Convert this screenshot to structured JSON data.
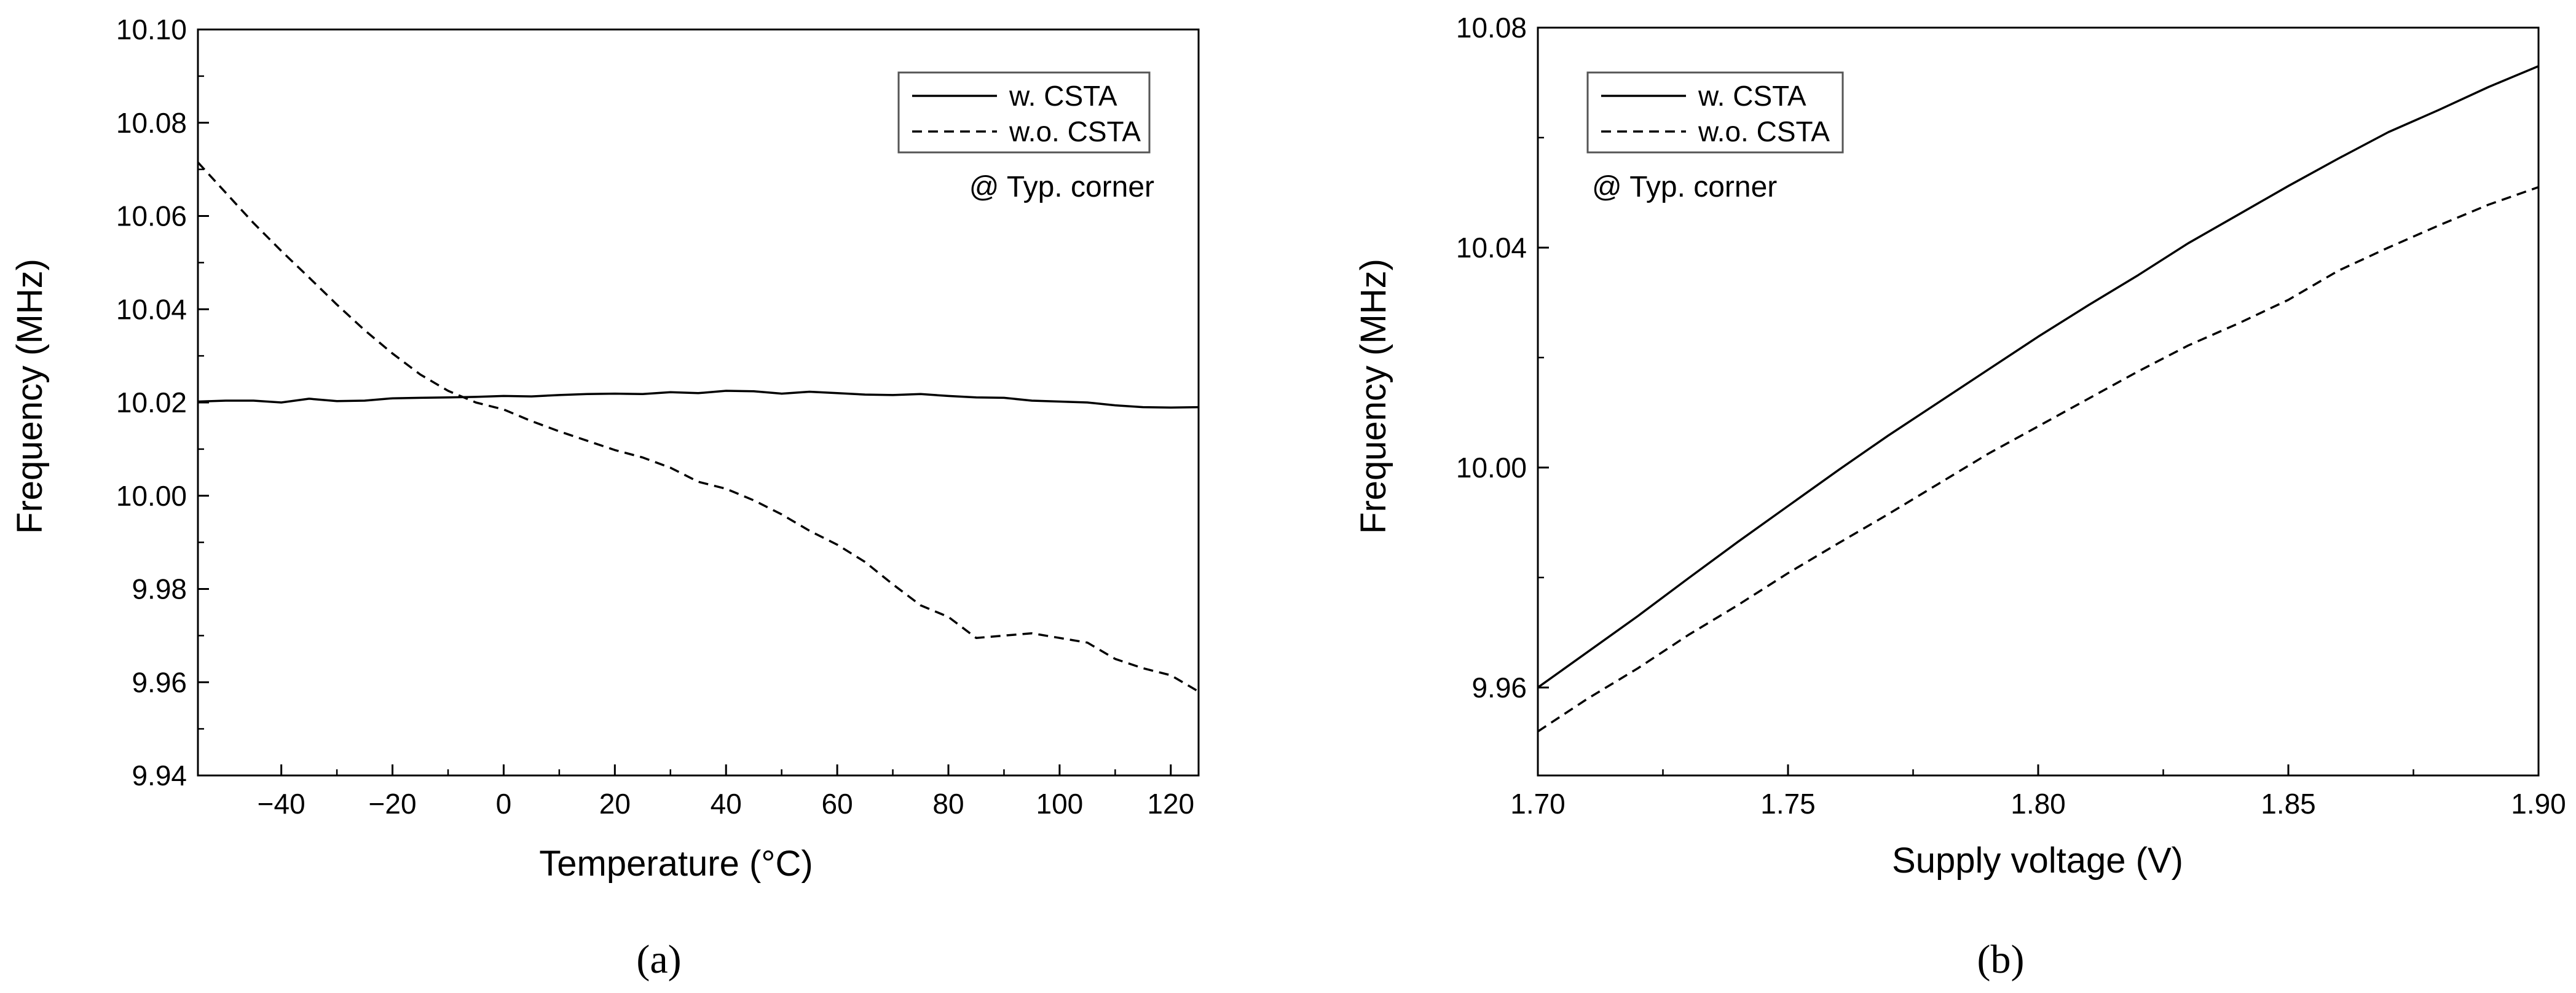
{
  "chart_data": [
    {
      "type": "line",
      "caption": "(a)",
      "xlabel": "Temperature (°C)",
      "ylabel": "Frequency (MHz)",
      "xlim": [
        -55,
        125
      ],
      "ylim": [
        9.94,
        10.1
      ],
      "xticks": [
        -40,
        -20,
        0,
        20,
        40,
        60,
        80,
        100,
        120
      ],
      "xtick_labels": [
        "−40",
        "−20",
        "0",
        "20",
        "40",
        "60",
        "80",
        "100",
        "120"
      ],
      "yticks": [
        9.94,
        9.96,
        9.98,
        10.0,
        10.02,
        10.04,
        10.06,
        10.08,
        10.1
      ],
      "ytick_labels": [
        "9.94",
        "9.96",
        "9.98",
        "10.00",
        "10.02",
        "10.04",
        "10.06",
        "10.08",
        "10.10"
      ],
      "annotation": "@ Typ. corner",
      "legend_position": "top-right",
      "grid": false,
      "series": [
        {
          "name": "w. CSTA",
          "style": "solid",
          "x": [
            -55,
            -50,
            -45,
            -40,
            -35,
            -30,
            -25,
            -20,
            -15,
            -10,
            -5,
            0,
            5,
            10,
            15,
            20,
            25,
            30,
            35,
            40,
            45,
            50,
            55,
            60,
            65,
            70,
            75,
            80,
            85,
            90,
            95,
            100,
            105,
            110,
            115,
            120,
            125
          ],
          "y": [
            10.0202,
            10.0204,
            10.0204,
            10.02,
            10.0208,
            10.0203,
            10.0204,
            10.0209,
            10.021,
            10.0211,
            10.0212,
            10.0214,
            10.0213,
            10.0216,
            10.0218,
            10.0219,
            10.0218,
            10.0222,
            10.022,
            10.0225,
            10.0224,
            10.0219,
            10.0223,
            10.022,
            10.0217,
            10.0216,
            10.0218,
            10.0214,
            10.0211,
            10.021,
            10.0204,
            10.0202,
            10.02,
            10.0194,
            10.019,
            10.0189,
            10.019
          ]
        },
        {
          "name": "w.o. CSTA",
          "style": "dashed",
          "x": [
            -55,
            -50,
            -45,
            -40,
            -35,
            -30,
            -25,
            -20,
            -15,
            -10,
            -5,
            0,
            5,
            10,
            15,
            20,
            25,
            30,
            35,
            40,
            45,
            50,
            55,
            60,
            65,
            70,
            75,
            80,
            85,
            90,
            95,
            100,
            105,
            110,
            115,
            120,
            125
          ],
          "y": [
            10.0715,
            10.065,
            10.0585,
            10.0525,
            10.0468,
            10.041,
            10.0355,
            10.0305,
            10.026,
            10.0225,
            10.02,
            10.0185,
            10.016,
            10.0138,
            10.0118,
            10.0098,
            10.0082,
            10.006,
            10.003,
            10.0015,
            9.999,
            9.996,
            9.9925,
            9.9895,
            9.9858,
            9.981,
            9.9765,
            9.974,
            9.9695,
            9.97,
            9.9705,
            9.9695,
            9.9685,
            9.965,
            9.963,
            9.9615,
            9.958
          ]
        }
      ]
    },
    {
      "type": "line",
      "caption": "(b)",
      "xlabel": "Supply voltage (V)",
      "ylabel": "Frequency (MHz)",
      "xlim": [
        1.7,
        1.9
      ],
      "ylim": [
        9.944,
        10.08
      ],
      "xticks": [
        1.7,
        1.75,
        1.8,
        1.85,
        1.9
      ],
      "xtick_labels": [
        "1.70",
        "1.75",
        "1.80",
        "1.85",
        "1.90"
      ],
      "yticks": [
        9.96,
        10.0,
        10.04,
        10.08
      ],
      "ytick_labels": [
        "9.96",
        "10.00",
        "10.04",
        "10.08"
      ],
      "annotation": "@ Typ. corner",
      "legend_position": "top-left",
      "grid": false,
      "series": [
        {
          "name": "w. CSTA",
          "style": "solid",
          "x": [
            1.7,
            1.71,
            1.72,
            1.73,
            1.74,
            1.75,
            1.76,
            1.77,
            1.78,
            1.79,
            1.8,
            1.81,
            1.82,
            1.83,
            1.84,
            1.85,
            1.86,
            1.87,
            1.88,
            1.89,
            1.9
          ],
          "y": [
            9.96,
            9.9665,
            9.973,
            9.9798,
            9.9865,
            9.993,
            9.9995,
            10.0058,
            10.0118,
            10.0178,
            10.0238,
            10.0295,
            10.035,
            10.0408,
            10.046,
            10.0512,
            10.0562,
            10.061,
            10.065,
            10.0692,
            10.073
          ]
        },
        {
          "name": "w.o. CSTA",
          "style": "dashed",
          "x": [
            1.7,
            1.71,
            1.72,
            1.73,
            1.74,
            1.75,
            1.76,
            1.77,
            1.78,
            1.79,
            1.8,
            1.81,
            1.82,
            1.83,
            1.84,
            1.85,
            1.86,
            1.87,
            1.88,
            1.89,
            1.9
          ],
          "y": [
            9.952,
            9.958,
            9.9635,
            9.9695,
            9.975,
            9.9808,
            9.9862,
            9.9915,
            9.997,
            10.0025,
            10.0075,
            10.0125,
            10.0175,
            10.0222,
            10.0262,
            10.0305,
            10.0358,
            10.04,
            10.044,
            10.0478,
            10.051
          ]
        }
      ]
    }
  ]
}
